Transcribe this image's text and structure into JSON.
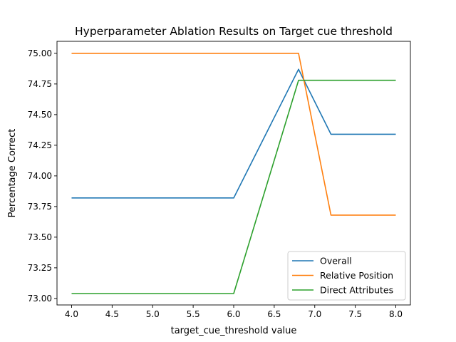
{
  "chart_data": {
    "type": "line",
    "title": "Hyperparameter Ablation Results on Target cue threshold",
    "xlabel": "target_cue_threshold value",
    "ylabel": "Percentage Correct",
    "xlim": [
      3.82,
      8.18
    ],
    "ylim": [
      72.947,
      75.098
    ],
    "xticks": [
      "4.0",
      "4.5",
      "5.0",
      "5.5",
      "6.0",
      "6.5",
      "7.0",
      "7.5",
      "8.0"
    ],
    "yticks": [
      "73.00",
      "73.25",
      "73.50",
      "73.75",
      "74.00",
      "74.25",
      "74.50",
      "74.75",
      "75.00"
    ],
    "grid": false,
    "legend_position": "lower right",
    "x": [
      4.0,
      6.0,
      6.8,
      7.2,
      8.0
    ],
    "series": [
      {
        "name": "Overall",
        "color": "#1f77b4",
        "values": [
          73.82,
          73.82,
          74.87,
          74.34,
          74.34
        ]
      },
      {
        "name": "Relative Position",
        "color": "#ff7f0e",
        "values": [
          75.0,
          75.0,
          75.0,
          73.68,
          73.68
        ]
      },
      {
        "name": "Direct Attributes",
        "color": "#2ca02c",
        "values": [
          73.04,
          73.04,
          74.78,
          74.78,
          74.78
        ]
      }
    ]
  }
}
